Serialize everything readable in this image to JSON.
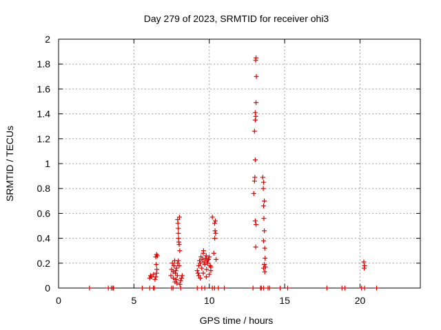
{
  "chart_data": {
    "type": "scatter",
    "title": "Day 279 of 2023, SRMTID for receiver ohi3",
    "xlabel": "GPS time / hours",
    "ylabel": "SRMTID / TECUs",
    "xlim": [
      0,
      24
    ],
    "ylim": [
      0,
      2
    ],
    "grid": true,
    "marker": "+",
    "color": "#dd0000",
    "x_ticks": [
      "0",
      "5",
      "10",
      "15",
      "20"
    ],
    "x_tick_values": [
      0,
      5,
      10,
      15,
      20
    ],
    "y_ticks": [
      "0",
      "0.2",
      "0.4",
      "0.6",
      "0.8",
      "1",
      "1.2",
      "1.4",
      "1.6",
      "1.8",
      "2"
    ],
    "y_tick_values": [
      0,
      0.2,
      0.4,
      0.6,
      0.8,
      1,
      1.2,
      1.4,
      1.6,
      1.8,
      2
    ],
    "series": [
      {
        "name": "SRMTID",
        "points": [
          [
            2.05,
            0
          ],
          [
            3.3,
            0
          ],
          [
            3.5,
            0
          ],
          [
            3.6,
            0
          ],
          [
            3.65,
            0
          ],
          [
            5.55,
            0
          ],
          [
            6.05,
            0
          ],
          [
            6.3,
            0
          ],
          [
            6.35,
            0
          ],
          [
            6.05,
            0.08
          ],
          [
            6.1,
            0.1
          ],
          [
            6.15,
            0.09
          ],
          [
            6.3,
            0.11
          ],
          [
            6.4,
            0.07
          ],
          [
            6.45,
            0.09
          ],
          [
            6.5,
            0.12
          ],
          [
            6.45,
            0.25
          ],
          [
            6.5,
            0.27
          ],
          [
            6.55,
            0.26
          ],
          [
            6.48,
            0.19
          ],
          [
            6.52,
            0.15
          ],
          [
            7.5,
            0
          ],
          [
            7.6,
            0
          ],
          [
            8.1,
            0
          ],
          [
            7.45,
            0.1
          ],
          [
            7.5,
            0.15
          ],
          [
            7.55,
            0.2
          ],
          [
            7.6,
            0.13
          ],
          [
            7.62,
            0.08
          ],
          [
            7.65,
            0.18
          ],
          [
            7.7,
            0.22
          ],
          [
            7.72,
            0.05
          ],
          [
            7.75,
            0.12
          ],
          [
            7.78,
            0.14
          ],
          [
            7.8,
            0.07
          ],
          [
            7.82,
            0.16
          ],
          [
            7.85,
            0.04
          ],
          [
            7.88,
            0.1
          ],
          [
            7.9,
            0.55
          ],
          [
            7.92,
            0.52
          ],
          [
            7.94,
            0.48
          ],
          [
            7.95,
            0.44
          ],
          [
            7.96,
            0.4
          ],
          [
            7.98,
            0.37
          ],
          [
            8.0,
            0.35
          ],
          [
            8.02,
            0.57
          ],
          [
            8.04,
            0.3
          ],
          [
            7.9,
            0.2
          ],
          [
            7.95,
            0.22
          ],
          [
            8.0,
            0.18
          ],
          [
            8.1,
            0.06
          ],
          [
            8.15,
            0.08
          ],
          [
            8.2,
            0.1
          ],
          [
            8.05,
            0.03
          ],
          [
            9.2,
            0
          ],
          [
            9.5,
            0
          ],
          [
            9.7,
            0
          ],
          [
            10.2,
            0
          ],
          [
            10.35,
            0
          ],
          [
            10.6,
            0
          ],
          [
            11.0,
            0
          ],
          [
            9.2,
            0.14
          ],
          [
            9.25,
            0.12
          ],
          [
            9.3,
            0.18
          ],
          [
            9.35,
            0.22
          ],
          [
            9.4,
            0.2
          ],
          [
            9.45,
            0.25
          ],
          [
            9.5,
            0.16
          ],
          [
            9.55,
            0.23
          ],
          [
            9.6,
            0.28
          ],
          [
            9.62,
            0.3
          ],
          [
            9.65,
            0.21
          ],
          [
            9.7,
            0.19
          ],
          [
            9.75,
            0.24
          ],
          [
            9.8,
            0.26
          ],
          [
            9.82,
            0.15
          ],
          [
            9.85,
            0.22
          ],
          [
            9.9,
            0.2
          ],
          [
            9.95,
            0.23
          ],
          [
            10.0,
            0.25
          ],
          [
            10.05,
            0.18
          ],
          [
            10.1,
            0.14
          ],
          [
            9.3,
            0.1
          ],
          [
            9.4,
            0.08
          ],
          [
            9.6,
            0.12
          ],
          [
            9.8,
            0.09
          ],
          [
            10.0,
            0.11
          ],
          [
            10.1,
            0.17
          ],
          [
            10.2,
            0.57
          ],
          [
            10.35,
            0.52
          ],
          [
            10.4,
            0.54
          ],
          [
            10.38,
            0.46
          ],
          [
            10.42,
            0.44
          ],
          [
            10.36,
            0.4
          ],
          [
            10.3,
            0.28
          ],
          [
            10.45,
            0.23
          ],
          [
            12.9,
            0
          ],
          [
            13.4,
            0
          ],
          [
            13.45,
            0
          ],
          [
            13.6,
            0
          ],
          [
            13.9,
            0
          ],
          [
            14.0,
            0
          ],
          [
            14.7,
            0
          ],
          [
            15.2,
            0
          ],
          [
            12.95,
            0.76
          ],
          [
            13.0,
            0.86
          ],
          [
            13.02,
            0.89
          ],
          [
            13.05,
            1.03
          ],
          [
            13.0,
            1.26
          ],
          [
            13.05,
            1.35
          ],
          [
            13.08,
            1.38
          ],
          [
            13.05,
            1.41
          ],
          [
            13.1,
            1.49
          ],
          [
            13.12,
            1.7
          ],
          [
            13.08,
            1.83
          ],
          [
            13.1,
            1.85
          ],
          [
            13.05,
            0.54
          ],
          [
            13.1,
            0.51
          ],
          [
            13.08,
            0.33
          ],
          [
            13.55,
            0.89
          ],
          [
            13.6,
            0.85
          ],
          [
            13.58,
            0.8
          ],
          [
            13.65,
            0.7
          ],
          [
            13.6,
            0.66
          ],
          [
            13.62,
            0.56
          ],
          [
            13.65,
            0.46
          ],
          [
            13.6,
            0.38
          ],
          [
            13.68,
            0.32
          ],
          [
            13.7,
            0.24
          ],
          [
            13.65,
            0.19
          ],
          [
            13.72,
            0.17
          ],
          [
            13.6,
            0.16
          ],
          [
            13.68,
            0.13
          ],
          [
            17.8,
            0
          ],
          [
            18.8,
            0
          ],
          [
            19.0,
            0
          ],
          [
            20.1,
            0
          ],
          [
            20.3,
            0
          ],
          [
            21.1,
            0
          ],
          [
            20.25,
            0.21
          ],
          [
            20.3,
            0.18
          ],
          [
            20.28,
            0.16
          ]
        ]
      }
    ]
  }
}
